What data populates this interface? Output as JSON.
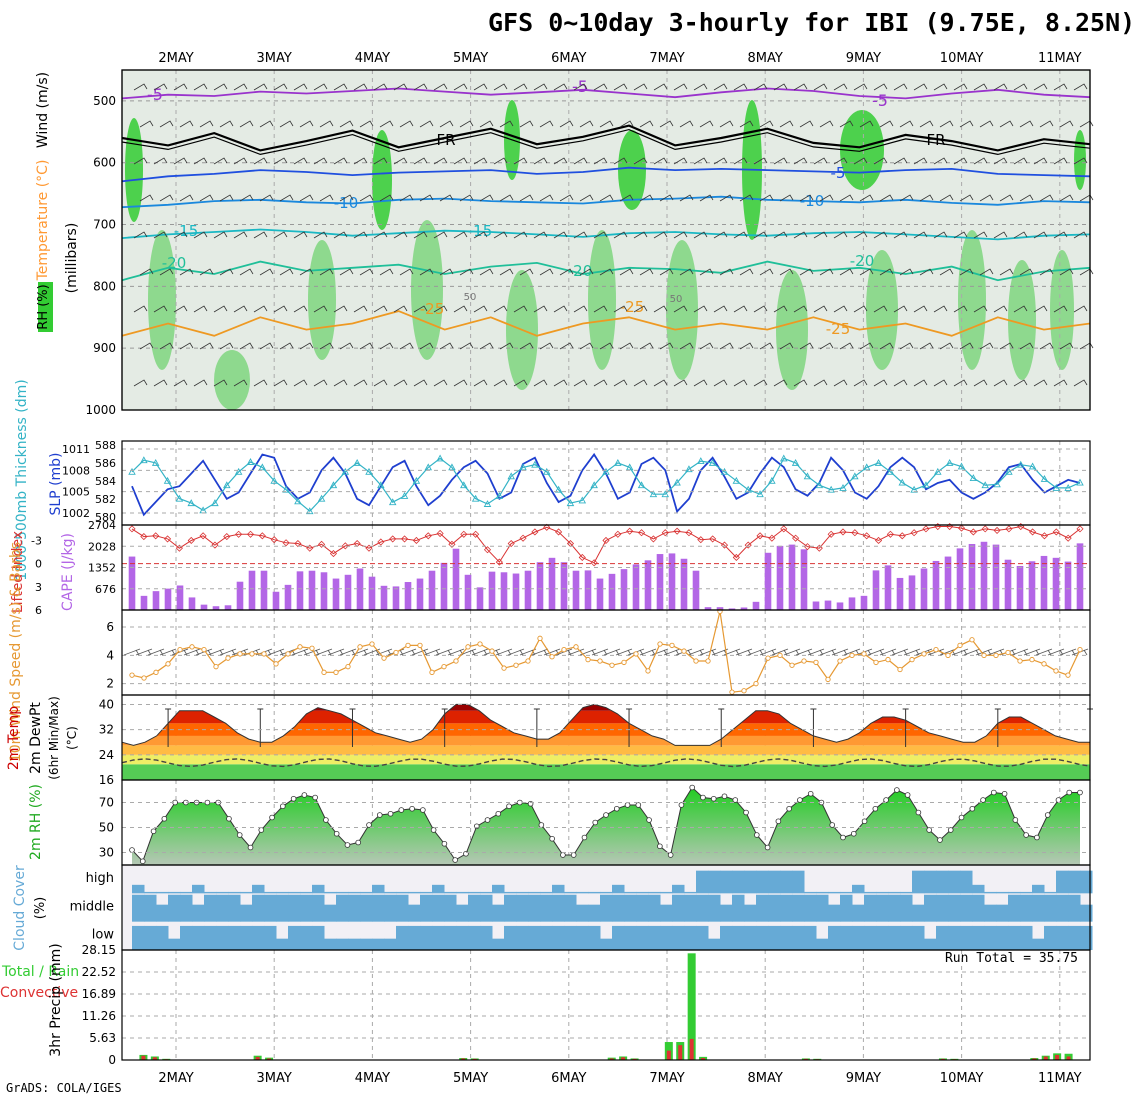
{
  "title": "GFS 0~10day 3-hourly for IBI (9.75E, 8.25N)",
  "credit": "GrADS: COLA/IGES",
  "run_total": "Run Total = 35.75",
  "colors": {
    "rh": "#33cc33",
    "temp": "#ff9933",
    "tmax": "#cc0000",
    "dewpt": "#444444",
    "slp": "#1f3fcf",
    "thick": "#33b3c6",
    "cape": "#b366e6",
    "li": "#d93333",
    "wind": "#e69933",
    "cloud": "#66aad6",
    "cloud_clear": "#f2f0f5",
    "precip_total": "#33cc33",
    "precip_conv": "#dd3333",
    "dewband": "#eeee66"
  },
  "chart_data": [
    {
      "type": "heatmap",
      "name": "upper-air",
      "xlabels": [
        "2MAY",
        "3MAY",
        "4MAY",
        "5MAY",
        "6MAY",
        "7MAY",
        "8MAY",
        "9MAY",
        "10MAY",
        "11MAY"
      ],
      "ylabel_parts": [
        "RH (%)",
        "Temperature (°C)",
        "Wind (m/s)"
      ],
      "ylabel_units": "(millibars)",
      "yticks": [
        "500",
        "600",
        "700",
        "800",
        "900",
        "1000"
      ],
      "ylim": [
        1000,
        450
      ],
      "contour_labels": [
        "-5",
        "-5",
        "-5",
        "FR",
        "FR",
        "-5",
        "-10",
        "-10",
        "-15",
        "-15",
        "-20",
        "-20",
        "-20",
        "-25",
        "-25",
        "-25",
        "50",
        "50"
      ],
      "isotherms": [
        {
          "t": -5,
          "p": [
            496,
            490,
            492,
            485,
            488,
            484,
            480,
            485,
            490,
            486,
            482,
            488,
            494,
            486,
            480,
            484,
            492,
            496,
            488,
            482,
            490,
            494
          ]
        },
        {
          "t": 0,
          "p": [
            560,
            572,
            552,
            580,
            565,
            548,
            575,
            560,
            545,
            570,
            558,
            540,
            572,
            560,
            545,
            568,
            575,
            555,
            565,
            580,
            562,
            570
          ]
        },
        {
          "t": 5,
          "p": [
            630,
            622,
            618,
            612,
            615,
            620,
            616,
            614,
            612,
            618,
            615,
            608,
            612,
            610,
            612,
            614,
            616,
            612,
            610,
            618,
            620,
            622
          ]
        },
        {
          "t": 10,
          "p": [
            672,
            668,
            662,
            660,
            664,
            666,
            660,
            658,
            662,
            664,
            666,
            660,
            658,
            655,
            660,
            662,
            664,
            660,
            665,
            668,
            662,
            664
          ]
        },
        {
          "t": 15,
          "p": [
            722,
            716,
            712,
            708,
            712,
            718,
            714,
            710,
            712,
            716,
            720,
            714,
            712,
            716,
            718,
            714,
            712,
            716,
            720,
            724,
            718,
            716
          ]
        },
        {
          "t": 20,
          "p": [
            790,
            770,
            780,
            760,
            775,
            770,
            765,
            780,
            768,
            762,
            780,
            770,
            772,
            778,
            760,
            775,
            770,
            780,
            768,
            790,
            776,
            770
          ]
        },
        {
          "t": 25,
          "p": [
            880,
            860,
            880,
            850,
            870,
            860,
            840,
            870,
            850,
            880,
            860,
            850,
            870,
            860,
            870,
            850,
            870,
            860,
            880,
            850,
            870,
            860
          ]
        }
      ]
    },
    {
      "type": "line",
      "name": "slp-thickness",
      "ylabel_left": "1000-500mb Thickness (dm)",
      "ylabel_right": "SLP (mb)",
      "yticks_left": [
        "580",
        "582",
        "584",
        "586",
        "588"
      ],
      "yticks_right": [
        "1002",
        "1005",
        "1008",
        "1011"
      ],
      "series": [
        {
          "name": "SLP (mb)",
          "ylim": [
            1000.5,
            1012.5
          ],
          "values": [
            1006,
            1001.5,
            1003.5,
            1005.5,
            1006,
            1008,
            1010,
            1007,
            1004,
            1005,
            1008,
            1011,
            1010.5,
            1006,
            1004,
            1005,
            1008.5,
            1010.5,
            1008,
            1004,
            1003,
            1006,
            1009,
            1010,
            1006,
            1003,
            1004.5,
            1007,
            1009,
            1010,
            1008,
            1004,
            1005,
            1009.5,
            1010.5,
            1006.5,
            1003.5,
            1004.5,
            1008.5,
            1011,
            1008,
            1004,
            1005,
            1009.5,
            1010.5,
            1008.5,
            1002,
            1004,
            1008.5,
            1010.5,
            1007.5,
            1004,
            1005,
            1008,
            1010.5,
            1009,
            1005.5,
            1004.5,
            1006.5,
            1010.5,
            1008.5,
            1005,
            1004,
            1006,
            1009,
            1010.5,
            1009,
            1005.5,
            1006.5,
            1007,
            1005,
            1004,
            1005,
            1006.5,
            1009,
            1009.5,
            1007,
            1005,
            1006,
            1007,
            1006.5
          ]
        },
        {
          "name": "1000-500mb Thickness (dm)",
          "ylim": [
            579.5,
            588
          ],
          "values": [
            585,
            586.3,
            586,
            584,
            582,
            581.5,
            580.7,
            581.5,
            583.5,
            585,
            586.1,
            585.5,
            584,
            583,
            581.7,
            580.6,
            582,
            583.5,
            585,
            586,
            585,
            583.5,
            581.6,
            582.3,
            584,
            585.5,
            586.5,
            585.5,
            583.5,
            582,
            581.4,
            582.3,
            584.5,
            585.5,
            585.8,
            585,
            583,
            581.5,
            581.8,
            583.5,
            585,
            586,
            585.5,
            583.5,
            582.5,
            582.5,
            583.8,
            585.3,
            586.2,
            586,
            585,
            584,
            583,
            582.5,
            584,
            586.5,
            586,
            584.5,
            583.5,
            583,
            583.2,
            584.5,
            585.5,
            586,
            585,
            583.8,
            583,
            583.5,
            585,
            586,
            585.6,
            584.3,
            583.5,
            583.6,
            585,
            585.8,
            585.6,
            584.2,
            583.2,
            583.2,
            583.8
          ]
        }
      ]
    },
    {
      "type": "bar",
      "name": "cape-li",
      "ylabel_left": "Lifted Index",
      "ylabel_right": "CAPE (J/kg)",
      "yticks_left": [
        "-3",
        "0",
        "3",
        "6"
      ],
      "yticks_right": [
        "676",
        "1352",
        "2028",
        "2704"
      ],
      "cape": {
        "ylim": [
          0,
          2704
        ],
        "values": [
          1700,
          450,
          600,
          680,
          780,
          400,
          170,
          120,
          150,
          900,
          1250,
          1250,
          580,
          800,
          1230,
          1250,
          1200,
          1000,
          1120,
          1320,
          1060,
          770,
          750,
          890,
          1000,
          1250,
          1500,
          1950,
          1120,
          720,
          1220,
          1200,
          1160,
          1250,
          1520,
          1660,
          1520,
          1250,
          1260,
          1000,
          1150,
          1300,
          1450,
          1580,
          1780,
          1800,
          1630,
          1250,
          90,
          90,
          50,
          80,
          260,
          1820,
          2040,
          2080,
          1930,
          270,
          300,
          240,
          400,
          450,
          1260,
          1420,
          1020,
          1100,
          1320,
          1560,
          1700,
          1960,
          2100,
          2170,
          2080,
          1600,
          1400,
          1550,
          1720,
          1660,
          1540,
          2120
        ]
      },
      "li": {
        "ylim": [
          6,
          -5
        ],
        "values": [
          -4.5,
          -3.5,
          -3.6,
          -3.2,
          -2,
          -3,
          -3.6,
          -2.4,
          -3.5,
          -3.8,
          -3.8,
          -3.6,
          -3.1,
          -2.7,
          -2.6,
          -2,
          -2.5,
          -1.3,
          -2.3,
          -2.6,
          -2,
          -2.8,
          -3.2,
          -3.2,
          -3,
          -3.6,
          -3.9,
          -2.5,
          -3.8,
          -3.8,
          -1.8,
          -0.2,
          -2.6,
          -3.3,
          -4.1,
          -4.7,
          -4.1,
          -2.6,
          -0.8,
          -0.1,
          -3,
          -3.8,
          -4.2,
          -4,
          -3.2,
          -4,
          -4.2,
          -4,
          -3.1,
          -3.2,
          -2.4,
          -0.8,
          -2.4,
          -3.6,
          -3.3,
          -4.5,
          -3.3,
          -2.2,
          -2,
          -3.8,
          -4.1,
          -4,
          -3.6,
          -3,
          -3.8,
          -3.6,
          -4,
          -4.5,
          -4.8,
          -4.8,
          -4.6,
          -4.1,
          -4.5,
          -4.3,
          -4.5,
          -4.8,
          -4.1,
          -3.6,
          -4.1,
          -3.3,
          -4.5
        ]
      }
    },
    {
      "type": "line",
      "name": "wind10m",
      "ylabel": "10m Wind Speed (m/s) & Barbs",
      "yticks": [
        "2",
        "4",
        "6"
      ],
      "ylim": [
        1.2,
        7.2
      ],
      "values": [
        2.6,
        2.4,
        2.8,
        3.4,
        4.4,
        4.6,
        4.4,
        3.2,
        3.8,
        4.1,
        4.1,
        4.1,
        3.4,
        4.1,
        4.6,
        4.5,
        2.8,
        2.8,
        3.2,
        4.6,
        4.8,
        3.8,
        4.2,
        4.7,
        4.7,
        2.8,
        3.2,
        3.6,
        4.6,
        4.8,
        4.3,
        3.1,
        3.3,
        3.6,
        5.2,
        3.9,
        4.4,
        4.6,
        3.7,
        3.6,
        3.3,
        3.5,
        4.1,
        2.9,
        4.8,
        4.7,
        4.3,
        3.6,
        3.6,
        7.1,
        1.4,
        1.5,
        2.0,
        3.8,
        4.0,
        3.3,
        3.6,
        3.5,
        2.3,
        3.6,
        4.0,
        4.1,
        3.5,
        3.7,
        3.0,
        3.7,
        4.1,
        4.4,
        4.0,
        4.7,
        5.1,
        4.0,
        4.0,
        4.2,
        3.6,
        3.7,
        3.4,
        2.9,
        2.6,
        4.4
      ]
    },
    {
      "type": "area",
      "name": "temp2m",
      "ylabel": "2m Temp 2m DewPt (6hr Min/Max) (°C)",
      "yticks": [
        "16",
        "24",
        "32",
        "40"
      ],
      "ylim": [
        16,
        43
      ],
      "tmin_values": [
        28,
        27,
        28,
        30,
        34,
        38,
        38,
        38,
        36,
        34,
        31,
        29,
        28,
        28,
        30,
        33,
        37,
        39,
        38,
        37,
        35,
        33,
        31,
        30,
        29,
        28,
        29,
        32,
        37,
        40,
        40,
        38,
        35,
        33,
        31,
        30,
        29,
        29,
        31,
        35,
        39,
        40,
        39,
        37,
        34,
        32,
        30,
        29,
        27,
        27,
        27,
        27,
        29,
        32,
        35,
        38,
        38,
        37,
        34,
        32,
        30,
        29,
        28,
        29,
        31,
        34,
        36,
        36,
        35,
        33,
        31,
        30,
        29,
        28,
        28,
        30,
        34,
        36,
        36,
        34,
        32,
        30,
        29,
        28,
        28
      ]
    },
    {
      "type": "area",
      "name": "rh2m",
      "ylabel": "2m RH (%)",
      "yticks": [
        "30",
        "50",
        "70"
      ],
      "ylim": [
        20,
        88
      ],
      "values": [
        32,
        23,
        47,
        57,
        70,
        70,
        70,
        70,
        70,
        57,
        44,
        34,
        48,
        58,
        67,
        73,
        76,
        74,
        56,
        45,
        36,
        38,
        52,
        60,
        61,
        64,
        65,
        64,
        48,
        37,
        24,
        29,
        51,
        56,
        61,
        67,
        70,
        69,
        52,
        41,
        28,
        28,
        42,
        54,
        60,
        65,
        68,
        68,
        56,
        35,
        28,
        68,
        82,
        74,
        73,
        75,
        72,
        62,
        44,
        34,
        55,
        65,
        72,
        77,
        70,
        52,
        42,
        45,
        55,
        65,
        72,
        80,
        76,
        62,
        48,
        40,
        48,
        58,
        65,
        72,
        78,
        77,
        56,
        44,
        42,
        60,
        72,
        78,
        78
      ]
    },
    {
      "type": "bar",
      "name": "cloud-cover",
      "ylabel": "Cloud Cover (%)",
      "layers": [
        "high",
        "middle",
        "low"
      ]
    },
    {
      "type": "bar",
      "name": "precip",
      "ylabel_left": "Total / Rain Convective",
      "ylabel_right": "3hr Precip (mm)",
      "yticks": [
        "0",
        "5.63",
        "11.26",
        "16.89",
        "22.52",
        "28.15"
      ],
      "ylim": [
        0,
        28.15
      ],
      "total": [
        0,
        1.3,
        0.9,
        0.3,
        0,
        0,
        0,
        0,
        0,
        0,
        0,
        1.1,
        0.6,
        0,
        0,
        0,
        0,
        0,
        0,
        0,
        0,
        0,
        0,
        0,
        0,
        0,
        0,
        0,
        0,
        0.5,
        0.4,
        0,
        0,
        0,
        0,
        0,
        0,
        0,
        0,
        0,
        0,
        0,
        0.6,
        0.9,
        0.4,
        0,
        0,
        4.6,
        4.6,
        27.3,
        0.8,
        0,
        0,
        0,
        0,
        0,
        0,
        0,
        0,
        0.4,
        0.3,
        0,
        0,
        0,
        0,
        0,
        0,
        0,
        0,
        0,
        0,
        0.4,
        0.3,
        0,
        0,
        0,
        0,
        0,
        0,
        0.5,
        1.1,
        1.7,
        1.6,
        0
      ],
      "convective": [
        0,
        1.1,
        0.7,
        0.2,
        0,
        0,
        0,
        0,
        0,
        0,
        0,
        0.8,
        0.4,
        0,
        0,
        0,
        0,
        0,
        0,
        0,
        0,
        0,
        0,
        0,
        0,
        0,
        0,
        0,
        0,
        0.4,
        0.3,
        0,
        0,
        0,
        0,
        0,
        0,
        0,
        0,
        0,
        0,
        0,
        0.4,
        0.7,
        0.3,
        0,
        0,
        2.4,
        3.8,
        5.4,
        0.5,
        0,
        0,
        0,
        0,
        0,
        0,
        0,
        0,
        0.3,
        0.2,
        0,
        0,
        0,
        0,
        0,
        0,
        0,
        0,
        0,
        0,
        0.3,
        0.2,
        0,
        0,
        0,
        0,
        0,
        0,
        0.4,
        0.9,
        1.3,
        0.9,
        0
      ]
    }
  ]
}
